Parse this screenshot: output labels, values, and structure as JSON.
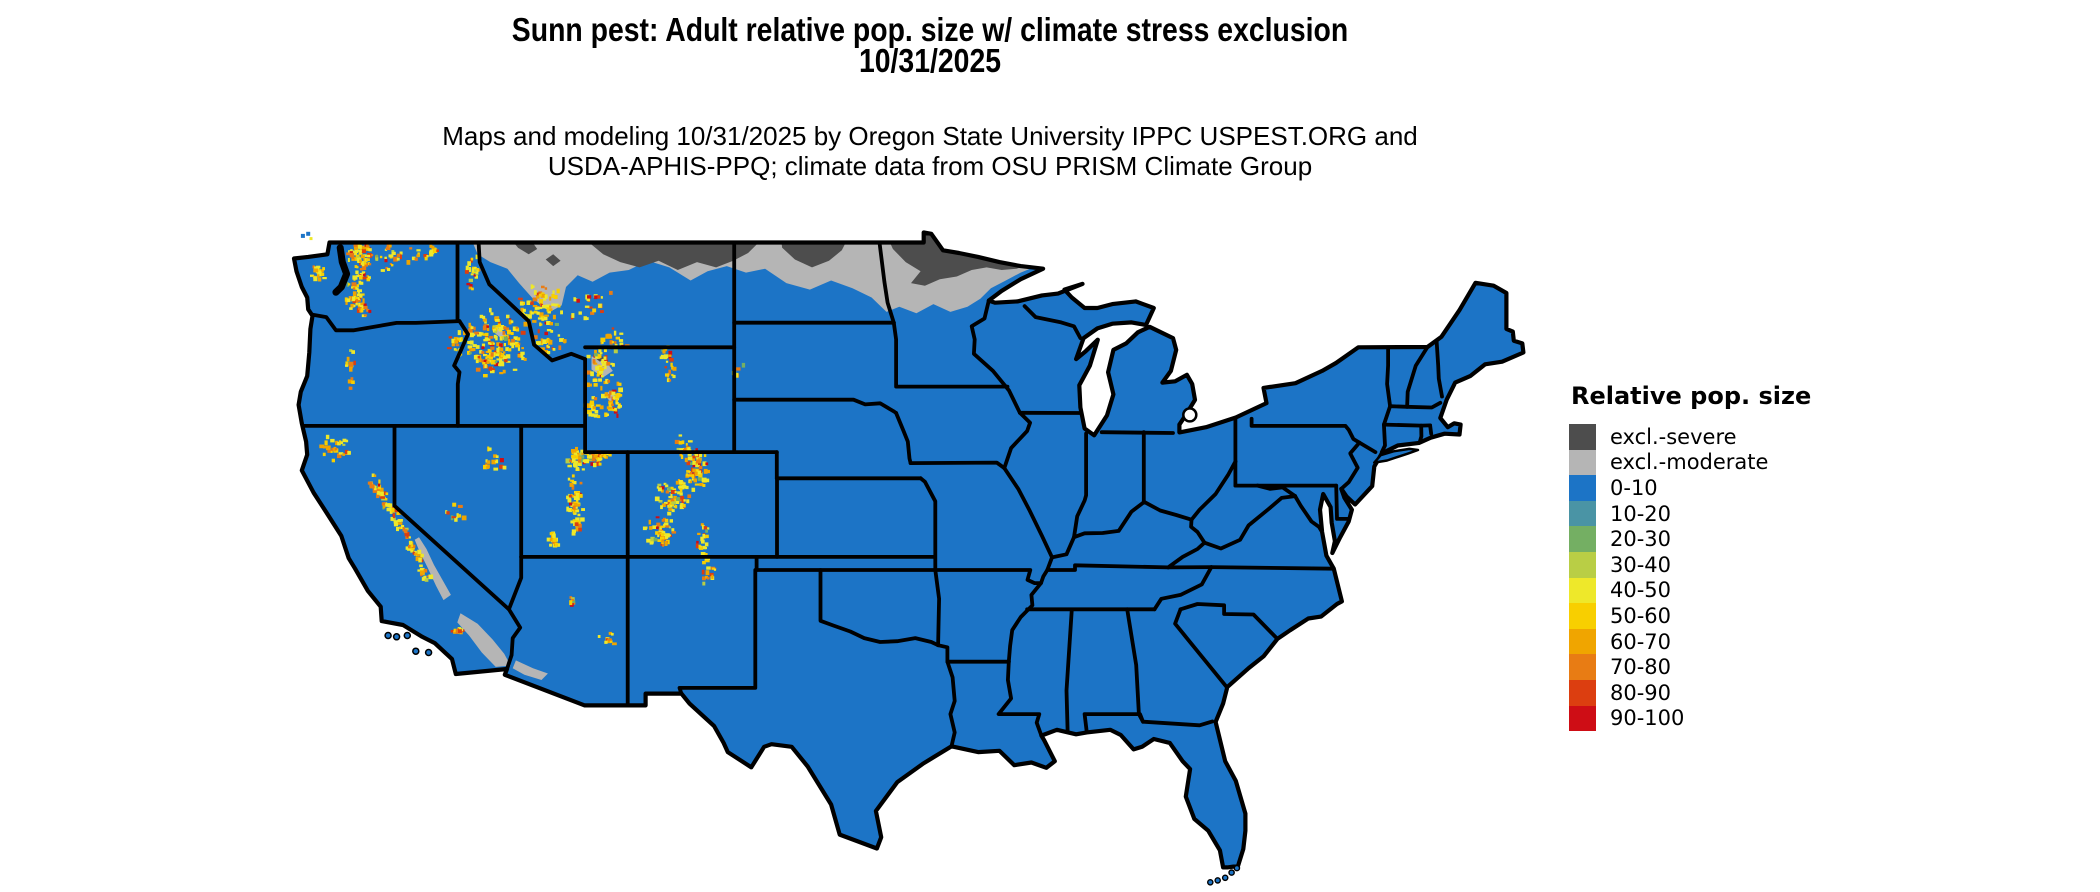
{
  "header": {
    "title_line1": "Sunn pest: Adult relative pop. size w/ climate stress exclusion",
    "title_line2": "10/31/2025",
    "subtitle_line1": "Maps and modeling 10/31/2025 by Oregon State University IPPC USPEST.ORG and",
    "subtitle_line2": "USDA-APHIS-PPQ; climate data from OSU PRISM Climate Group"
  },
  "legend": {
    "title": "Relative pop. size",
    "items": [
      {
        "label": "excl.-severe",
        "color": "#4D4D4D"
      },
      {
        "label": "excl.-moderate",
        "color": "#B5B5B5"
      },
      {
        "label": "0-10",
        "color": "#1C74C6"
      },
      {
        "label": "10-20",
        "color": "#4A94A5"
      },
      {
        "label": "20-30",
        "color": "#74AF63"
      },
      {
        "label": "30-40",
        "color": "#B9CE45"
      },
      {
        "label": "40-50",
        "color": "#EEE82A"
      },
      {
        "label": "50-60",
        "color": "#F8CF00"
      },
      {
        "label": "60-70",
        "color": "#F0A500"
      },
      {
        "label": "70-80",
        "color": "#E87C14"
      },
      {
        "label": "80-90",
        "color": "#DC3E10"
      },
      {
        "label": "90-100",
        "color": "#CE0D15"
      }
    ]
  },
  "map": {
    "land_color": "#1C74C6",
    "border_color": "#000000",
    "water_color": "#FFFFFF",
    "excl_severe_color": "#4D4D4D",
    "excl_moderate_color": "#B5B5B5",
    "speckle_palette": [
      "#EEE82A",
      "#F8CF00",
      "#F0A500",
      "#E87C14",
      "#DC3E10",
      "#CE0D15",
      "#B9CE45",
      "#74AF63"
    ]
  }
}
